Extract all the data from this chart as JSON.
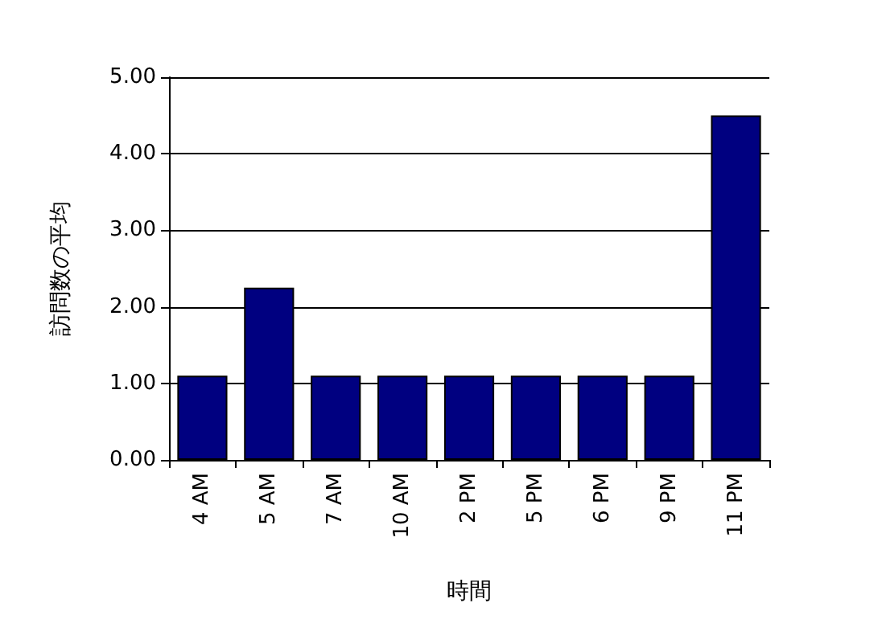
{
  "chart_data": {
    "type": "bar",
    "xlabel": "時間",
    "ylabel": "訪問数の平均",
    "categories": [
      "4 AM",
      "5 AM",
      "7 AM",
      "10 AM",
      "2 PM",
      "5 PM",
      "6 PM",
      "9 PM",
      "11 PM"
    ],
    "values": [
      1.1,
      2.25,
      1.1,
      1.1,
      1.1,
      1.1,
      1.1,
      1.1,
      4.5
    ],
    "color": "#000080",
    "ylim": [
      0,
      5
    ],
    "yticks": [
      {
        "value": 0,
        "label": "0.00"
      },
      {
        "value": 1,
        "label": "1.00"
      },
      {
        "value": 2,
        "label": "2.00"
      },
      {
        "value": 3,
        "label": "3.00"
      },
      {
        "value": 4,
        "label": "4.00"
      },
      {
        "value": 5,
        "label": "5.00"
      }
    ],
    "grid": "y"
  }
}
